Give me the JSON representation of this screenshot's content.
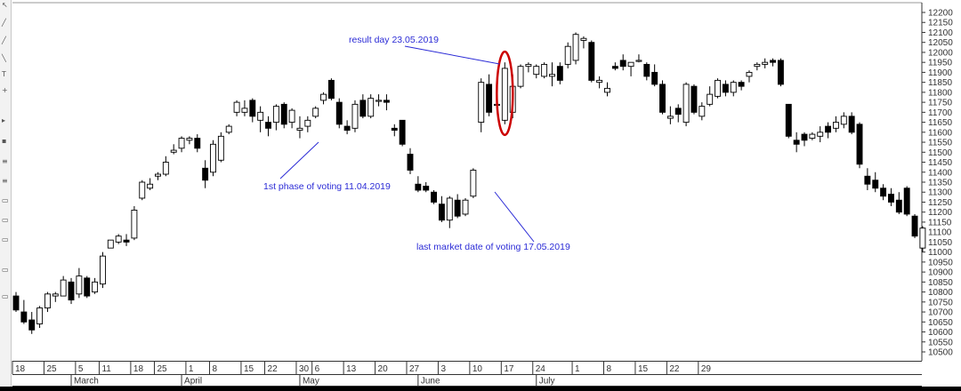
{
  "chart_data": {
    "type": "candlestick",
    "y_range": [
      10450,
      12250
    ],
    "y_ticks": [
      10500,
      10550,
      10600,
      10650,
      10700,
      10750,
      10800,
      10850,
      10900,
      10950,
      11000,
      11050,
      11100,
      11150,
      11200,
      11250,
      11300,
      11350,
      11400,
      11450,
      11500,
      11550,
      11600,
      11650,
      11700,
      11750,
      11800,
      11850,
      11900,
      11950,
      12000,
      12050,
      12100,
      12150,
      12200
    ],
    "grid": false,
    "up_color": "#ffffff",
    "down_color": "#000000",
    "highlight_color": "#cc0000",
    "candles": [
      {
        "o": 10780,
        "h": 10800,
        "l": 10700,
        "c": 10710
      },
      {
        "o": 10700,
        "h": 10760,
        "l": 10640,
        "c": 10650
      },
      {
        "o": 10660,
        "h": 10700,
        "l": 10590,
        "c": 10610
      },
      {
        "o": 10640,
        "h": 10730,
        "l": 10620,
        "c": 10720
      },
      {
        "o": 10720,
        "h": 10800,
        "l": 10700,
        "c": 10790
      },
      {
        "o": 10780,
        "h": 10800,
        "l": 10750,
        "c": 10790
      },
      {
        "o": 10780,
        "h": 10880,
        "l": 10780,
        "c": 10860
      },
      {
        "o": 10850,
        "h": 10870,
        "l": 10740,
        "c": 10760
      },
      {
        "o": 10790,
        "h": 10920,
        "l": 10770,
        "c": 10880
      },
      {
        "o": 10870,
        "h": 10880,
        "l": 10770,
        "c": 10780
      },
      {
        "o": 10800,
        "h": 10870,
        "l": 10790,
        "c": 10850
      },
      {
        "o": 10840,
        "h": 11000,
        "l": 10820,
        "c": 10980
      },
      {
        "o": 11020,
        "h": 11060,
        "l": 11020,
        "c": 11060
      },
      {
        "o": 11050,
        "h": 11090,
        "l": 11040,
        "c": 11080
      },
      {
        "o": 11060,
        "h": 11090,
        "l": 11030,
        "c": 11050
      },
      {
        "o": 11070,
        "h": 11230,
        "l": 11060,
        "c": 11210
      },
      {
        "o": 11270,
        "h": 11360,
        "l": 11260,
        "c": 11350
      },
      {
        "o": 11320,
        "h": 11370,
        "l": 11310,
        "c": 11340
      },
      {
        "o": 11380,
        "h": 11400,
        "l": 11360,
        "c": 11390
      },
      {
        "o": 11390,
        "h": 11480,
        "l": 11380,
        "c": 11450
      },
      {
        "o": 11500,
        "h": 11540,
        "l": 11490,
        "c": 11510
      },
      {
        "o": 11520,
        "h": 11580,
        "l": 11500,
        "c": 11570
      },
      {
        "o": 11560,
        "h": 11580,
        "l": 11540,
        "c": 11570
      },
      {
        "o": 11570,
        "h": 11590,
        "l": 11500,
        "c": 11520
      },
      {
        "o": 11420,
        "h": 11460,
        "l": 11320,
        "c": 11360
      },
      {
        "o": 11400,
        "h": 11560,
        "l": 11380,
        "c": 11540
      },
      {
        "o": 11460,
        "h": 11600,
        "l": 11450,
        "c": 11580
      },
      {
        "o": 11600,
        "h": 11640,
        "l": 11590,
        "c": 11630
      },
      {
        "o": 11700,
        "h": 11760,
        "l": 11680,
        "c": 11750
      },
      {
        "o": 11700,
        "h": 11760,
        "l": 11680,
        "c": 11720
      },
      {
        "o": 11760,
        "h": 11770,
        "l": 11650,
        "c": 11680
      },
      {
        "o": 11660,
        "h": 11730,
        "l": 11600,
        "c": 11700
      },
      {
        "o": 11650,
        "h": 11680,
        "l": 11580,
        "c": 11620
      },
      {
        "o": 11650,
        "h": 11740,
        "l": 11610,
        "c": 11730
      },
      {
        "o": 11740,
        "h": 11750,
        "l": 11620,
        "c": 11640
      },
      {
        "o": 11650,
        "h": 11720,
        "l": 11620,
        "c": 11710
      },
      {
        "o": 11610,
        "h": 11680,
        "l": 11570,
        "c": 11620
      },
      {
        "o": 11630,
        "h": 11680,
        "l": 11600,
        "c": 11660
      },
      {
        "o": 11680,
        "h": 11730,
        "l": 11670,
        "c": 11720
      },
      {
        "o": 11760,
        "h": 11800,
        "l": 11740,
        "c": 11790
      },
      {
        "o": 11860,
        "h": 11870,
        "l": 11760,
        "c": 11770
      },
      {
        "o": 11750,
        "h": 11770,
        "l": 11620,
        "c": 11640
      },
      {
        "o": 11630,
        "h": 11660,
        "l": 11590,
        "c": 11610
      },
      {
        "o": 11620,
        "h": 11760,
        "l": 11600,
        "c": 11740
      },
      {
        "o": 11760,
        "h": 11790,
        "l": 11670,
        "c": 11680
      },
      {
        "o": 11680,
        "h": 11790,
        "l": 11670,
        "c": 11770
      },
      {
        "o": 11760,
        "h": 11790,
        "l": 11730,
        "c": 11760
      },
      {
        "o": 11760,
        "h": 11790,
        "l": 11710,
        "c": 11750
      },
      {
        "o": 11620,
        "h": 11640,
        "l": 11580,
        "c": 11610
      },
      {
        "o": 11660,
        "h": 11660,
        "l": 11530,
        "c": 11540
      },
      {
        "o": 11490,
        "h": 11520,
        "l": 11390,
        "c": 11410
      },
      {
        "o": 11340,
        "h": 11380,
        "l": 11300,
        "c": 11310
      },
      {
        "o": 11330,
        "h": 11350,
        "l": 11300,
        "c": 11310
      },
      {
        "o": 11300,
        "h": 11310,
        "l": 11240,
        "c": 11250
      },
      {
        "o": 11240,
        "h": 11280,
        "l": 11150,
        "c": 11160
      },
      {
        "o": 11160,
        "h": 11280,
        "l": 11120,
        "c": 11270
      },
      {
        "o": 11260,
        "h": 11290,
        "l": 11170,
        "c": 11180
      },
      {
        "o": 11190,
        "h": 11270,
        "l": 11180,
        "c": 11260
      },
      {
        "o": 11280,
        "h": 11420,
        "l": 11270,
        "c": 11410
      },
      {
        "o": 11650,
        "h": 11870,
        "l": 11600,
        "c": 11850
      },
      {
        "o": 11840,
        "h": 11890,
        "l": 11680,
        "c": 11700
      },
      {
        "o": 11740,
        "h": 11760,
        "l": 11710,
        "c": 11740
      },
      {
        "o": 11660,
        "h": 11950,
        "l": 11640,
        "c": 11920
      },
      {
        "o": 11700,
        "h": 11890,
        "l": 11670,
        "c": 11830
      },
      {
        "o": 11830,
        "h": 11940,
        "l": 11820,
        "c": 11930
      },
      {
        "o": 11930,
        "h": 11950,
        "l": 11900,
        "c": 11940
      },
      {
        "o": 11890,
        "h": 11940,
        "l": 11870,
        "c": 11930
      },
      {
        "o": 11880,
        "h": 11950,
        "l": 11870,
        "c": 11940
      },
      {
        "o": 11880,
        "h": 11950,
        "l": 11830,
        "c": 11890
      },
      {
        "o": 11930,
        "h": 11950,
        "l": 11840,
        "c": 11860
      },
      {
        "o": 11940,
        "h": 12050,
        "l": 11920,
        "c": 12030
      },
      {
        "o": 11960,
        "h": 12100,
        "l": 11940,
        "c": 12090
      },
      {
        "o": 12060,
        "h": 12080,
        "l": 12020,
        "c": 12070
      },
      {
        "o": 12050,
        "h": 12060,
        "l": 11850,
        "c": 11860
      },
      {
        "o": 11850,
        "h": 11880,
        "l": 11820,
        "c": 11860
      },
      {
        "o": 11800,
        "h": 11850,
        "l": 11780,
        "c": 11820
      },
      {
        "o": 11930,
        "h": 11950,
        "l": 11910,
        "c": 11920
      },
      {
        "o": 11960,
        "h": 11990,
        "l": 11910,
        "c": 11930
      },
      {
        "o": 11930,
        "h": 11950,
        "l": 11880,
        "c": 11950
      },
      {
        "o": 11960,
        "h": 11990,
        "l": 11950,
        "c": 11960
      },
      {
        "o": 11940,
        "h": 11950,
        "l": 11860,
        "c": 11880
      },
      {
        "o": 11900,
        "h": 11940,
        "l": 11830,
        "c": 11840
      },
      {
        "o": 11840,
        "h": 11860,
        "l": 11690,
        "c": 11700
      },
      {
        "o": 11670,
        "h": 11730,
        "l": 11640,
        "c": 11680
      },
      {
        "o": 11720,
        "h": 11740,
        "l": 11650,
        "c": 11690
      },
      {
        "o": 11650,
        "h": 11850,
        "l": 11630,
        "c": 11840
      },
      {
        "o": 11830,
        "h": 11840,
        "l": 11690,
        "c": 11700
      },
      {
        "o": 11680,
        "h": 11750,
        "l": 11660,
        "c": 11730
      },
      {
        "o": 11740,
        "h": 11830,
        "l": 11730,
        "c": 11790
      },
      {
        "o": 11780,
        "h": 11870,
        "l": 11770,
        "c": 11860
      },
      {
        "o": 11840,
        "h": 11860,
        "l": 11780,
        "c": 11800
      },
      {
        "o": 11800,
        "h": 11860,
        "l": 11780,
        "c": 11850
      },
      {
        "o": 11850,
        "h": 11860,
        "l": 11810,
        "c": 11830
      },
      {
        "o": 11880,
        "h": 11910,
        "l": 11850,
        "c": 11900
      },
      {
        "o": 11930,
        "h": 11950,
        "l": 11910,
        "c": 11940
      },
      {
        "o": 11940,
        "h": 11970,
        "l": 11920,
        "c": 11950
      },
      {
        "o": 11960,
        "h": 11970,
        "l": 11930,
        "c": 11950
      },
      {
        "o": 11960,
        "h": 11970,
        "l": 11830,
        "c": 11840
      },
      {
        "o": 11740,
        "h": 11740,
        "l": 11570,
        "c": 11580
      },
      {
        "o": 11560,
        "h": 11600,
        "l": 11500,
        "c": 11540
      },
      {
        "o": 11590,
        "h": 11600,
        "l": 11530,
        "c": 11560
      },
      {
        "o": 11570,
        "h": 11600,
        "l": 11560,
        "c": 11590
      },
      {
        "o": 11580,
        "h": 11630,
        "l": 11550,
        "c": 11600
      },
      {
        "o": 11630,
        "h": 11650,
        "l": 11570,
        "c": 11600
      },
      {
        "o": 11620,
        "h": 11680,
        "l": 11600,
        "c": 11650
      },
      {
        "o": 11640,
        "h": 11700,
        "l": 11620,
        "c": 11680
      },
      {
        "o": 11680,
        "h": 11700,
        "l": 11590,
        "c": 11600
      },
      {
        "o": 11640,
        "h": 11650,
        "l": 11420,
        "c": 11440
      },
      {
        "o": 11380,
        "h": 11420,
        "l": 11310,
        "c": 11340
      },
      {
        "o": 11360,
        "h": 11400,
        "l": 11300,
        "c": 11320
      },
      {
        "o": 11320,
        "h": 11340,
        "l": 11260,
        "c": 11280
      },
      {
        "o": 11290,
        "h": 11320,
        "l": 11230,
        "c": 11250
      },
      {
        "o": 11260,
        "h": 11300,
        "l": 11190,
        "c": 11200
      },
      {
        "o": 11320,
        "h": 11330,
        "l": 11180,
        "c": 11190
      },
      {
        "o": 11180,
        "h": 11190,
        "l": 11070,
        "c": 11080
      },
      {
        "o": 11020,
        "h": 11130,
        "l": 11000,
        "c": 11120
      }
    ],
    "highlighted_candle_index": 62,
    "day_ticks": [
      "18",
      "25",
      "5",
      "11",
      "18",
      "25",
      "1",
      "8",
      "15",
      "22",
      "30",
      "6",
      "13",
      "20",
      "27",
      "3",
      "10",
      "17",
      "24",
      "1",
      "8",
      "15",
      "22",
      "29"
    ],
    "day_tick_candle_index": [
      0,
      4,
      8,
      11,
      15,
      18,
      22,
      25,
      29,
      32,
      36,
      38,
      42,
      46,
      50,
      54,
      58,
      62,
      66,
      71,
      75,
      79,
      83,
      87
    ],
    "months": [
      "March",
      "April",
      "May",
      "June",
      "July"
    ],
    "month_tick_candle_index": [
      7,
      21,
      36,
      51,
      66
    ],
    "annotations": [
      {
        "id": "result-day",
        "text": "result day 23.05.2019",
        "target": 62
      },
      {
        "id": "first-phase",
        "text": "1st phase of voting 11.04.2019",
        "target": 27
      },
      {
        "id": "last-market-date",
        "text": "last market date of voting 17.05.2019",
        "target": 44
      }
    ]
  }
}
